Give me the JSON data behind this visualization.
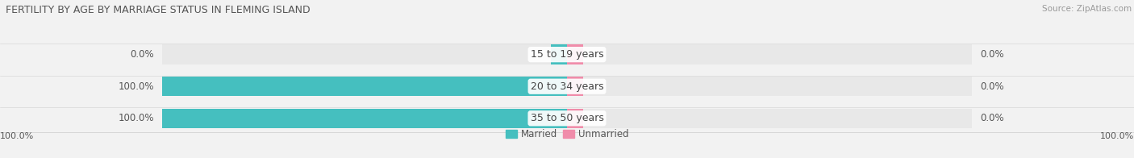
{
  "title": "FERTILITY BY AGE BY MARRIAGE STATUS IN FLEMING ISLAND",
  "source": "Source: ZipAtlas.com",
  "categories": [
    "15 to 19 years",
    "20 to 34 years",
    "35 to 50 years"
  ],
  "married_values": [
    0.0,
    100.0,
    100.0
  ],
  "unmarried_values": [
    0.0,
    0.0,
    0.0
  ],
  "married_color": "#45bfbf",
  "unmarried_color": "#f08caa",
  "bar_bg_color": "#e8e8e8",
  "bar_height": 0.62,
  "max_val": 100.0,
  "legend_married": "Married",
  "legend_unmarried": "Unmarried",
  "bottom_left_label": "100.0%",
  "bottom_right_label": "100.0%",
  "title_fontsize": 9.0,
  "label_fontsize": 8.5,
  "cat_fontsize": 9.0,
  "tick_fontsize": 8.0,
  "source_fontsize": 7.5,
  "bg_color": "#f2f2f2",
  "plot_bg_color": "#f2f2f2"
}
